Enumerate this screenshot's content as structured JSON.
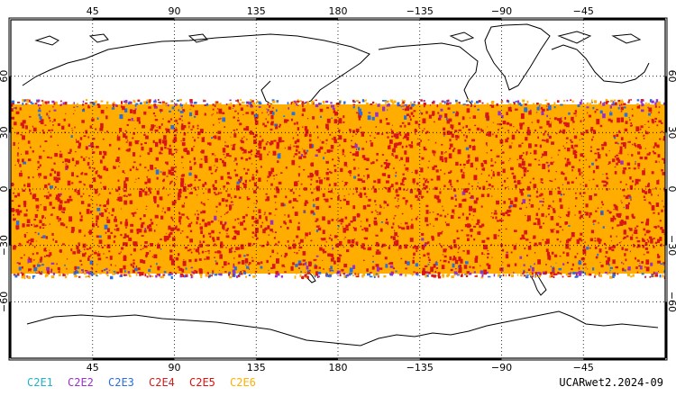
{
  "map": {
    "top_lon_labels": [
      "45",
      "90",
      "135",
      "180",
      "−135",
      "−90",
      "−45"
    ],
    "bottom_lon_labels": [
      "45",
      "90",
      "135",
      "180",
      "−135",
      "−90",
      "−45"
    ],
    "lat_labels": [
      "60",
      "30",
      "0",
      "−30",
      "−60"
    ],
    "lat_values": [
      60,
      30,
      0,
      -30,
      -60
    ],
    "lon_values": [
      45,
      90,
      135,
      180,
      225,
      270,
      315
    ],
    "lon_range": [
      0,
      360
    ],
    "lat_range": [
      -90,
      90
    ],
    "data_band_lat": [
      -45,
      45
    ],
    "grid": "dotted"
  },
  "legend": {
    "items": [
      {
        "label": "C2E1",
        "color": "#1fb3c9"
      },
      {
        "label": "C2E2",
        "color": "#9b30c8"
      },
      {
        "label": "C2E3",
        "color": "#2a6fdb"
      },
      {
        "label": "C2E4",
        "color": "#cc2020"
      },
      {
        "label": "C2E5",
        "color": "#e01010"
      },
      {
        "label": "C2E6",
        "color": "#ffb000"
      }
    ]
  },
  "dataset_label": "UCARwet2.2024-09",
  "colors": {
    "band_base": "#ffad00",
    "red": "#d81616",
    "blue": "#2a6fdb",
    "purple": "#9b30c8",
    "cyan": "#1fb3c9"
  }
}
